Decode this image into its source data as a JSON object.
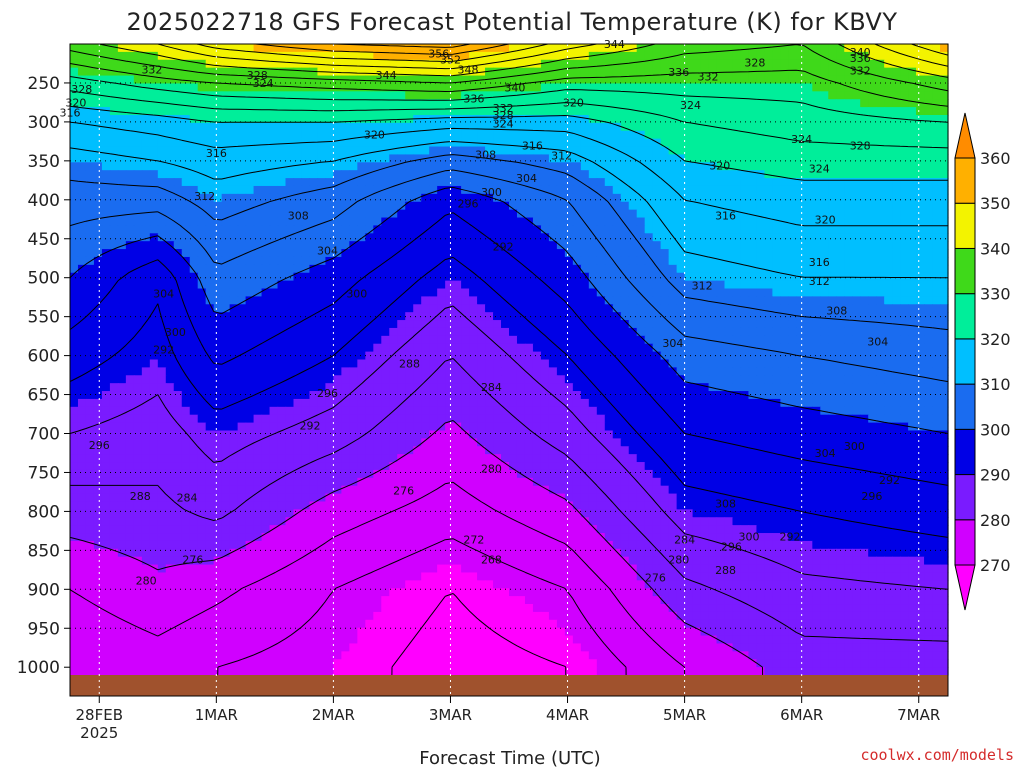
{
  "chart_data": {
    "type": "heatmap",
    "title": "2025022718 GFS Forecast Potential Temperature (K) for KBVY",
    "xlabel": "Forecast Time (UTC)",
    "ylabel": "",
    "credit": "coolwx.com/models",
    "y_ticks": [
      250,
      300,
      350,
      400,
      450,
      500,
      550,
      600,
      650,
      700,
      750,
      800,
      850,
      900,
      950,
      1000
    ],
    "y_range_hPa": [
      200,
      1010
    ],
    "x_ticks": [
      {
        "day": 0,
        "label": "28FEB",
        "sublabel": "2025"
      },
      {
        "day": 1,
        "label": "1MAR"
      },
      {
        "day": 2,
        "label": "2MAR"
      },
      {
        "day": 3,
        "label": "3MAR"
      },
      {
        "day": 4,
        "label": "4MAR"
      },
      {
        "day": 5,
        "label": "5MAR"
      },
      {
        "day": 6,
        "label": "6MAR"
      },
      {
        "day": 7,
        "label": "7MAR"
      }
    ],
    "x_range_days": [
      -0.25,
      7.25
    ],
    "colorbar": {
      "bounds": [
        270,
        280,
        290,
        300,
        310,
        320,
        330,
        340,
        350,
        360
      ],
      "labels": [
        "270",
        "280",
        "290",
        "300",
        "310",
        "320",
        "330",
        "340",
        "350",
        "360"
      ],
      "colors": [
        "#ff00ff",
        "#d000ff",
        "#7a1bff",
        "#0000e6",
        "#1a6cf0",
        "#00bfff",
        "#00ee9a",
        "#3fd91a",
        "#f3f300",
        "#ffb000",
        "#ff8c00"
      ]
    },
    "contour_interval_K": 4,
    "ground_color": "#a0522d",
    "profiles": [
      {
        "day": -0.25,
        "theta_at_pressure": [
          [
            1000,
            272
          ],
          [
            900,
            276
          ],
          [
            800,
            282
          ],
          [
            700,
            288
          ],
          [
            600,
            294
          ],
          [
            500,
            300
          ],
          [
            400,
            306
          ],
          [
            350,
            310
          ],
          [
            300,
            316
          ],
          [
            250,
            326
          ],
          [
            200,
            338
          ]
        ]
      },
      {
        "day": 0.5,
        "theta_at_pressure": [
          [
            1000,
            274
          ],
          [
            900,
            279
          ],
          [
            800,
            283
          ],
          [
            700,
            286
          ],
          [
            600,
            290
          ],
          [
            500,
            293
          ],
          [
            400,
            306
          ],
          [
            350,
            312
          ],
          [
            300,
            318
          ],
          [
            250,
            330
          ],
          [
            200,
            344
          ]
        ]
      },
      {
        "day": 1.0,
        "theta_at_pressure": [
          [
            1000,
            272
          ],
          [
            900,
            277
          ],
          [
            800,
            285
          ],
          [
            700,
            290
          ],
          [
            600,
            297
          ],
          [
            500,
            303
          ],
          [
            400,
            310
          ],
          [
            350,
            314
          ],
          [
            300,
            320
          ],
          [
            250,
            332
          ],
          [
            200,
            350
          ]
        ]
      },
      {
        "day": 2.0,
        "theta_at_pressure": [
          [
            1000,
            270
          ],
          [
            900,
            272
          ],
          [
            800,
            278
          ],
          [
            700,
            286
          ],
          [
            600,
            292
          ],
          [
            500,
            298
          ],
          [
            400,
            306
          ],
          [
            350,
            312
          ],
          [
            300,
            320
          ],
          [
            250,
            334
          ],
          [
            200,
            356
          ]
        ]
      },
      {
        "day": 3.0,
        "theta_at_pressure": [
          [
            1000,
            266
          ],
          [
            900,
            268
          ],
          [
            800,
            274
          ],
          [
            700,
            279
          ],
          [
            600,
            284
          ],
          [
            500,
            290
          ],
          [
            400,
            297
          ],
          [
            350,
            306
          ],
          [
            300,
            318
          ],
          [
            250,
            336
          ],
          [
            200,
            358
          ]
        ]
      },
      {
        "day": 4.0,
        "theta_at_pressure": [
          [
            1000,
            268
          ],
          [
            900,
            272
          ],
          [
            800,
            279
          ],
          [
            700,
            286
          ],
          [
            600,
            292
          ],
          [
            500,
            298
          ],
          [
            400,
            304
          ],
          [
            350,
            310
          ],
          [
            300,
            318
          ],
          [
            250,
            330
          ],
          [
            200,
            346
          ]
        ]
      },
      {
        "day": 5.0,
        "theta_at_pressure": [
          [
            1000,
            276
          ],
          [
            900,
            283
          ],
          [
            800,
            290
          ],
          [
            700,
            296
          ],
          [
            600,
            302
          ],
          [
            500,
            310
          ],
          [
            400,
            316
          ],
          [
            350,
            320
          ],
          [
            300,
            324
          ],
          [
            250,
            330
          ],
          [
            200,
            338
          ]
        ]
      },
      {
        "day": 6.0,
        "theta_at_pressure": [
          [
            1000,
            282
          ],
          [
            900,
            287
          ],
          [
            800,
            292
          ],
          [
            700,
            298
          ],
          [
            600,
            304
          ],
          [
            500,
            312
          ],
          [
            400,
            318
          ],
          [
            350,
            322
          ],
          [
            300,
            326
          ],
          [
            250,
            330
          ],
          [
            200,
            336
          ]
        ]
      },
      {
        "day": 7.25,
        "theta_at_pressure": [
          [
            1000,
            282
          ],
          [
            900,
            288
          ],
          [
            800,
            294
          ],
          [
            700,
            300
          ],
          [
            600,
            306
          ],
          [
            500,
            312
          ],
          [
            400,
            318
          ],
          [
            350,
            322
          ],
          [
            300,
            328
          ],
          [
            250,
            338
          ],
          [
            200,
            352
          ]
        ]
      }
    ],
    "contour_labels": [
      {
        "day": 2.9,
        "p": 212,
        "text": "356"
      },
      {
        "day": 3.0,
        "p": 220,
        "text": "352"
      },
      {
        "day": 3.15,
        "p": 233,
        "text": "348"
      },
      {
        "day": 2.45,
        "p": 240,
        "text": "344"
      },
      {
        "day": 3.55,
        "p": 256,
        "text": "340"
      },
      {
        "day": 3.2,
        "p": 270,
        "text": "336"
      },
      {
        "day": 3.45,
        "p": 282,
        "text": "332"
      },
      {
        "day": 3.45,
        "p": 291,
        "text": "328"
      },
      {
        "day": 3.45,
        "p": 302,
        "text": "324"
      },
      {
        "day": 2.35,
        "p": 316,
        "text": "320"
      },
      {
        "day": 3.7,
        "p": 330,
        "text": "316"
      },
      {
        "day": 3.95,
        "p": 343,
        "text": "312"
      },
      {
        "day": 1.0,
        "p": 340,
        "text": "316"
      },
      {
        "day": 3.3,
        "p": 342,
        "text": "308"
      },
      {
        "day": 0.9,
        "p": 395,
        "text": "312"
      },
      {
        "day": 3.65,
        "p": 372,
        "text": "304"
      },
      {
        "day": 1.7,
        "p": 420,
        "text": "308"
      },
      {
        "day": 3.35,
        "p": 390,
        "text": "300"
      },
      {
        "day": 3.15,
        "p": 405,
        "text": "296"
      },
      {
        "day": 1.95,
        "p": 465,
        "text": "304"
      },
      {
        "day": 3.45,
        "p": 460,
        "text": "292"
      },
      {
        "day": 0.55,
        "p": 520,
        "text": "304"
      },
      {
        "day": 2.2,
        "p": 520,
        "text": "300"
      },
      {
        "day": 0.65,
        "p": 570,
        "text": "300"
      },
      {
        "day": 0.55,
        "p": 592,
        "text": "292"
      },
      {
        "day": 2.65,
        "p": 610,
        "text": "288"
      },
      {
        "day": 3.35,
        "p": 640,
        "text": "284"
      },
      {
        "day": 1.95,
        "p": 648,
        "text": "296"
      },
      {
        "day": 1.8,
        "p": 690,
        "text": "292"
      },
      {
        "day": 0.0,
        "p": 715,
        "text": "296"
      },
      {
        "day": 3.35,
        "p": 745,
        "text": "280"
      },
      {
        "day": 2.6,
        "p": 773,
        "text": "276"
      },
      {
        "day": 0.35,
        "p": 780,
        "text": "288"
      },
      {
        "day": 0.75,
        "p": 782,
        "text": "284"
      },
      {
        "day": 3.2,
        "p": 836,
        "text": "272"
      },
      {
        "day": 0.8,
        "p": 862,
        "text": "276"
      },
      {
        "day": 3.35,
        "p": 862,
        "text": "268"
      },
      {
        "day": 0.4,
        "p": 889,
        "text": "280"
      },
      {
        "day": 5.35,
        "p": 790,
        "text": "308"
      },
      {
        "day": 5.55,
        "p": 832,
        "text": "300"
      },
      {
        "day": 5.0,
        "p": 836,
        "text": "284"
      },
      {
        "day": 4.95,
        "p": 862,
        "text": "280"
      },
      {
        "day": 4.75,
        "p": 885,
        "text": "276"
      },
      {
        "day": 5.35,
        "p": 875,
        "text": "288"
      },
      {
        "day": 5.4,
        "p": 845,
        "text": "296"
      },
      {
        "day": 5.9,
        "p": 832,
        "text": "292"
      },
      {
        "day": 6.2,
        "p": 725,
        "text": "304"
      },
      {
        "day": 6.6,
        "p": 780,
        "text": "296"
      },
      {
        "day": 6.75,
        "p": 760,
        "text": "292"
      },
      {
        "day": 6.45,
        "p": 716,
        "text": "300"
      },
      {
        "day": 6.65,
        "p": 582,
        "text": "304"
      },
      {
        "day": 6.3,
        "p": 542,
        "text": "308"
      },
      {
        "day": 4.9,
        "p": 584,
        "text": "304"
      },
      {
        "day": 5.15,
        "p": 510,
        "text": "312"
      },
      {
        "day": 6.15,
        "p": 504,
        "text": "312"
      },
      {
        "day": 6.15,
        "p": 480,
        "text": "316"
      },
      {
        "day": 5.35,
        "p": 420,
        "text": "316"
      },
      {
        "day": 6.2,
        "p": 425,
        "text": "320"
      },
      {
        "day": 5.3,
        "p": 356,
        "text": "320"
      },
      {
        "day": 6.15,
        "p": 360,
        "text": "324"
      },
      {
        "day": 6.0,
        "p": 322,
        "text": "324"
      },
      {
        "day": 6.5,
        "p": 330,
        "text": "328"
      },
      {
        "day": 5.6,
        "p": 224,
        "text": "328"
      },
      {
        "day": 4.95,
        "p": 236,
        "text": "336"
      },
      {
        "day": 5.2,
        "p": 242,
        "text": "332"
      },
      {
        "day": 6.5,
        "p": 210,
        "text": "340"
      },
      {
        "day": 6.5,
        "p": 218,
        "text": "336"
      },
      {
        "day": 6.5,
        "p": 234,
        "text": "332"
      },
      {
        "day": 5.05,
        "p": 278,
        "text": "324"
      },
      {
        "day": 4.05,
        "p": 275,
        "text": "320"
      },
      {
        "day": 4.4,
        "p": 200,
        "text": "344"
      },
      {
        "day": 0.45,
        "p": 233,
        "text": "332"
      },
      {
        "day": 1.35,
        "p": 240,
        "text": "328"
      },
      {
        "day": 1.4,
        "p": 250,
        "text": "324"
      },
      {
        "day": -0.15,
        "p": 258,
        "text": "328"
      },
      {
        "day": -0.2,
        "p": 275,
        "text": "320"
      },
      {
        "day": -0.25,
        "p": 288,
        "text": "316"
      }
    ]
  }
}
